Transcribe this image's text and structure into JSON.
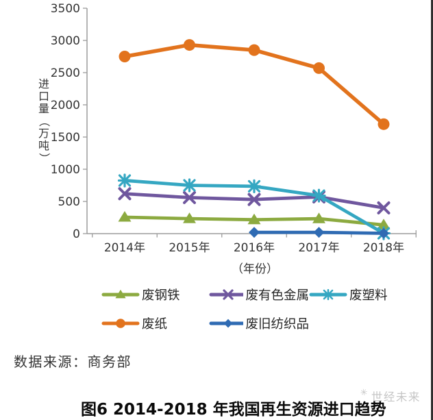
{
  "chart_data": {
    "type": "line",
    "title": "",
    "categories": [
      "2014年",
      "2015年",
      "2016年",
      "2017年",
      "2018年"
    ],
    "series": [
      {
        "name": "废钢铁",
        "color": "#8CAA40",
        "marker": "triangle",
        "values": [
          255,
          233,
          216,
          232,
          135
        ]
      },
      {
        "name": "废有色金属",
        "color": "#6F579E",
        "marker": "x",
        "values": [
          620,
          560,
          530,
          570,
          400
        ]
      },
      {
        "name": "废塑料",
        "color": "#35A7C2",
        "marker": "star",
        "values": [
          825,
          750,
          735,
          590,
          5
        ]
      },
      {
        "name": "废纸",
        "color": "#E2731D",
        "marker": "circle",
        "values": [
          2750,
          2930,
          2850,
          2570,
          1700
        ]
      },
      {
        "name": "废旧纺织品",
        "color": "#2F6BB3",
        "marker": "diamond",
        "values": [
          null,
          null,
          20,
          20,
          5
        ]
      }
    ],
    "ylabel": "进口量（万吨）",
    "xlabel": "（年份）",
    "ylim": [
      0,
      3500
    ],
    "ytick_interval": 500,
    "legend_position": "bottom",
    "grid": false,
    "axis_color": "#9B9B9B",
    "tick_label_color": "#333333"
  },
  "source_note": "数据来源：商务部",
  "caption": "图6 2014-2018 年我国再生资源进口趋势",
  "watermark": {
    "logo": "✳",
    "text": "世经未来"
  }
}
